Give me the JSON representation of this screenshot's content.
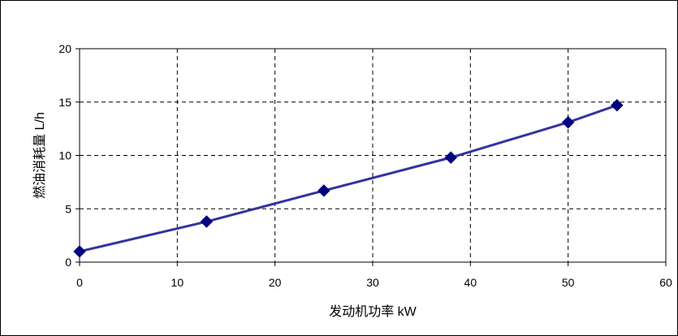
{
  "chart_data": {
    "type": "line",
    "xlabel": "发动机功率 kW",
    "ylabel": "燃油消耗量 L/h",
    "xlim": [
      0,
      60
    ],
    "ylim": [
      0,
      20
    ],
    "x_ticks": [
      0,
      10,
      20,
      30,
      40,
      50,
      60
    ],
    "y_ticks": [
      0,
      5,
      10,
      15,
      20
    ],
    "x_tick_labels": [
      "0",
      "10",
      "20",
      "30",
      "40",
      "50",
      "60"
    ],
    "y_tick_labels": [
      "0",
      "5",
      "10",
      "15",
      "20"
    ],
    "grid": "dashed",
    "legend": "none",
    "series": [
      {
        "x": [
          0,
          13,
          25,
          38,
          50,
          55
        ],
        "y": [
          1.0,
          3.8,
          6.7,
          9.8,
          13.1,
          14.7
        ],
        "line_color": "#3333a0",
        "marker": "diamond",
        "marker_color": "#000080"
      }
    ]
  }
}
